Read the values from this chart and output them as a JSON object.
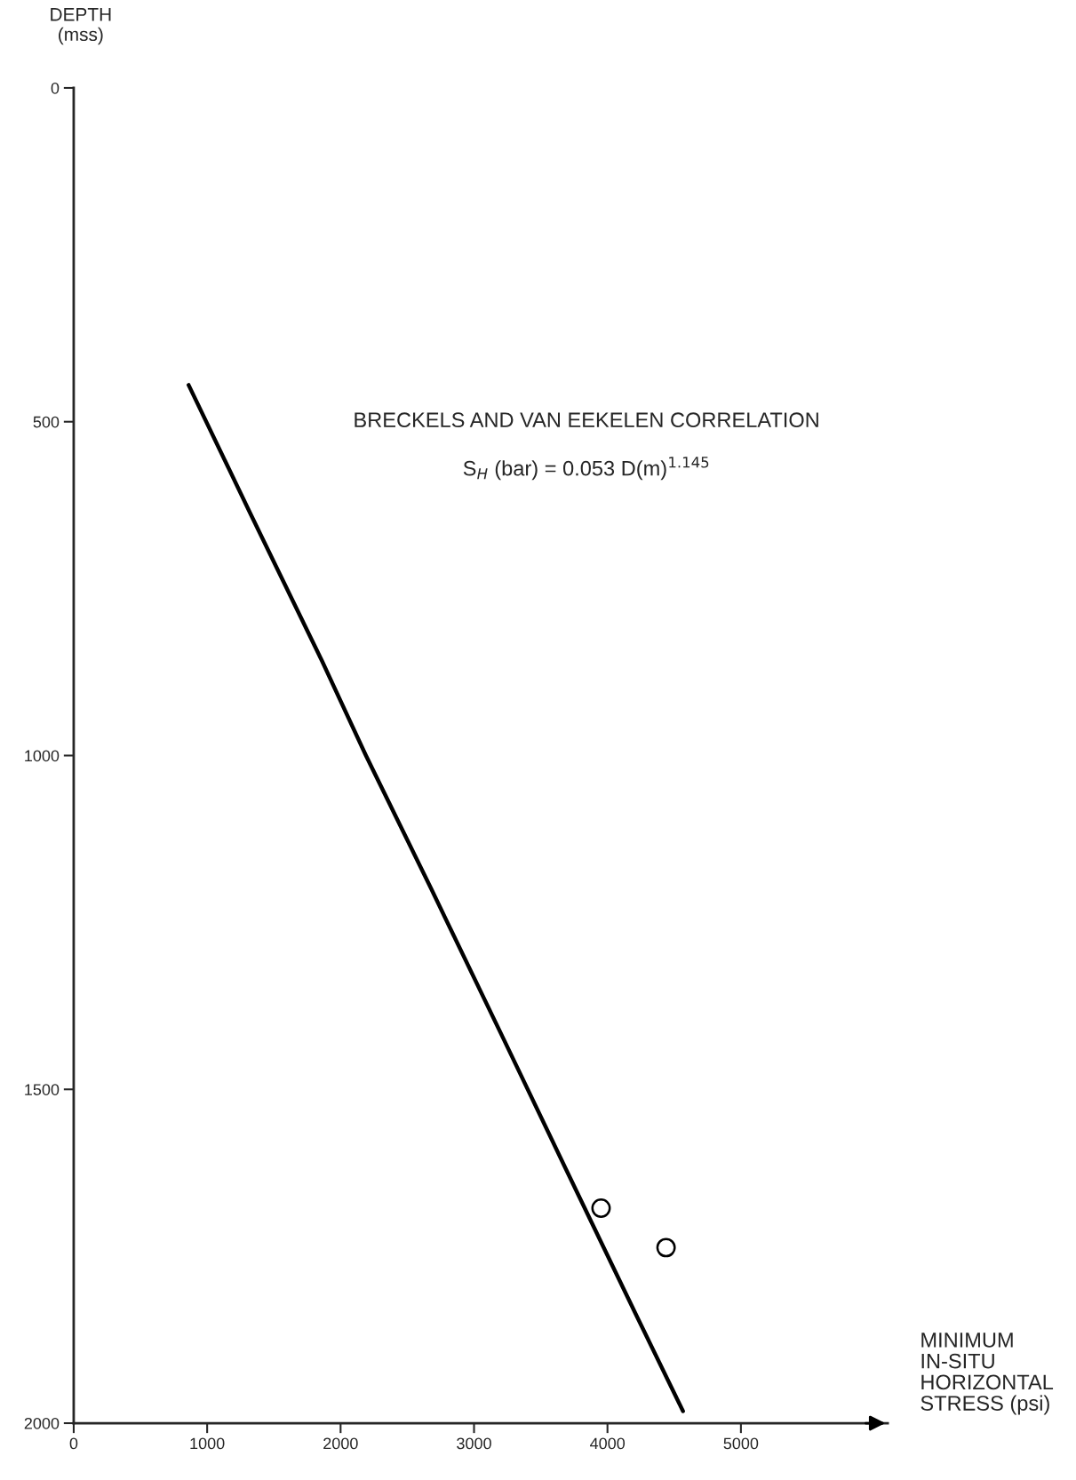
{
  "chart_data": {
    "type": "line",
    "xlabel": "MINIMUM\nIN-SITU\nHORIZONTAL\nSTRESS (psi)",
    "ylabel": "DEPTH\n(mss)",
    "annotations": [
      "BRECKELS AND VAN EEKELEN CORRELATION",
      "S$_{H}$ (bar) = 0.053 D(m)$^{1.145}$"
    ],
    "series": [
      {
        "color": "#000000",
        "x": [
          861,
          1330,
          1860,
          2190,
          2680,
          3220,
          3690,
          4220,
          4566
        ],
        "values": [
          445,
          640,
          858,
          1000,
          1200,
          1424,
          1620,
          1840,
          1982
        ]
      },
      {
        "type": "scatter",
        "color": "#000000",
        "marker": "circle",
        "x": [
          3952,
          4439
        ],
        "values": [
          1678,
          1737
        ]
      }
    ],
    "xlim": [
      0,
      6100
    ],
    "ylim": [
      2000,
      0
    ],
    "xticks": [
      0,
      1000,
      2000,
      3000,
      4000,
      5000
    ],
    "yticks": [
      0,
      500,
      1000,
      1500,
      2000
    ]
  }
}
